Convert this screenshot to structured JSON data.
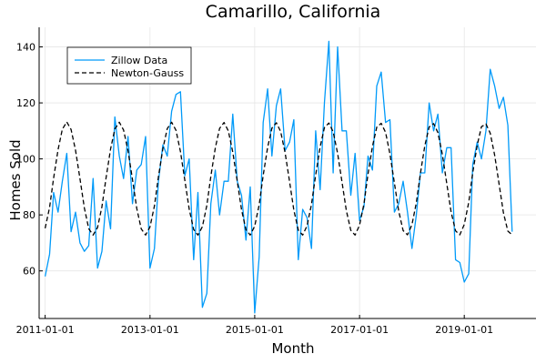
{
  "chart_data": {
    "type": "line",
    "title": "Camarillo, California",
    "xlabel": "Month",
    "ylabel": "Homes Sold",
    "x_start": "2011-01",
    "x_ticks": [
      "2011-01-01",
      "2013-01-01",
      "2015-01-01",
      "2017-01-01",
      "2019-01-01"
    ],
    "y_ticks": [
      60,
      80,
      100,
      120,
      140
    ],
    "xlim": [
      "2010-11-20",
      "2020-05-15"
    ],
    "ylim": [
      43,
      147
    ],
    "grid": true,
    "legend_position": "top-left",
    "series": [
      {
        "name": "Zillow Data",
        "color": "#009af9",
        "style": "solid",
        "values": [
          58,
          66,
          88,
          81,
          92,
          102,
          74,
          81,
          70,
          67,
          69,
          93,
          61,
          67,
          85,
          75,
          115,
          101,
          93,
          108,
          84,
          96,
          98,
          108,
          61,
          68,
          92,
          105,
          101,
          117,
          123,
          124,
          94,
          100,
          64,
          88,
          47,
          52,
          84,
          96,
          80,
          92,
          92,
          116,
          92,
          87,
          71,
          90,
          45,
          65,
          113,
          125,
          101,
          119,
          125,
          103,
          106,
          114,
          64,
          82,
          79,
          68,
          110,
          89,
          120,
          142,
          95,
          140,
          110,
          110,
          87,
          102,
          78,
          83,
          101,
          96,
          126,
          131,
          113,
          114,
          81,
          84,
          92,
          81,
          68,
          80,
          95,
          95,
          120,
          110,
          116,
          95,
          104,
          104,
          64,
          63,
          56,
          59,
          98,
          106,
          100,
          110,
          132,
          126,
          118,
          122,
          112,
          74
        ]
      },
      {
        "name": "Newton-Gauss",
        "color": "#000000",
        "style": "dashed",
        "values": [
          75.2,
          82.7,
          93.1,
          103.3,
          110.6,
          113.2,
          110.5,
          103.1,
          92.9,
          82.5,
          75.1,
          72.8,
          75.5,
          82.9,
          93.3,
          103.5,
          110.7,
          113.1,
          110.3,
          102.9,
          92.6,
          82.3,
          75.0,
          72.8,
          75.7,
          83.2,
          93.6,
          103.7,
          110.8,
          113.1,
          110.2,
          102.6,
          92.4,
          82.1,
          74.8,
          72.8,
          75.8,
          83.4,
          93.8,
          103.9,
          110.9,
          113.0,
          110.0,
          102.4,
          92.1,
          81.9,
          74.7,
          72.8,
          76.0,
          83.6,
          94.1,
          104.1,
          111.0,
          112.9,
          109.8,
          102.2,
          91.9,
          81.7,
          74.6,
          72.8,
          76.1,
          83.8,
          94.3,
          104.3,
          111.2,
          112.8,
          109.7,
          102.0,
          91.6,
          81.5,
          74.5,
          72.8,
          76.3,
          84.0,
          94.6,
          104.5,
          111.3,
          112.7,
          109.5,
          101.8,
          91.4,
          81.3,
          74.4,
          72.9,
          76.5,
          84.3,
          94.8,
          104.7,
          111.4,
          112.6,
          109.4,
          101.6,
          91.1,
          81.1,
          74.3,
          72.9,
          76.6,
          84.5,
          95.1,
          104.9,
          111.5,
          112.5,
          109.2,
          101.3,
          90.9,
          80.8,
          74.2,
          72.9
        ]
      }
    ]
  }
}
